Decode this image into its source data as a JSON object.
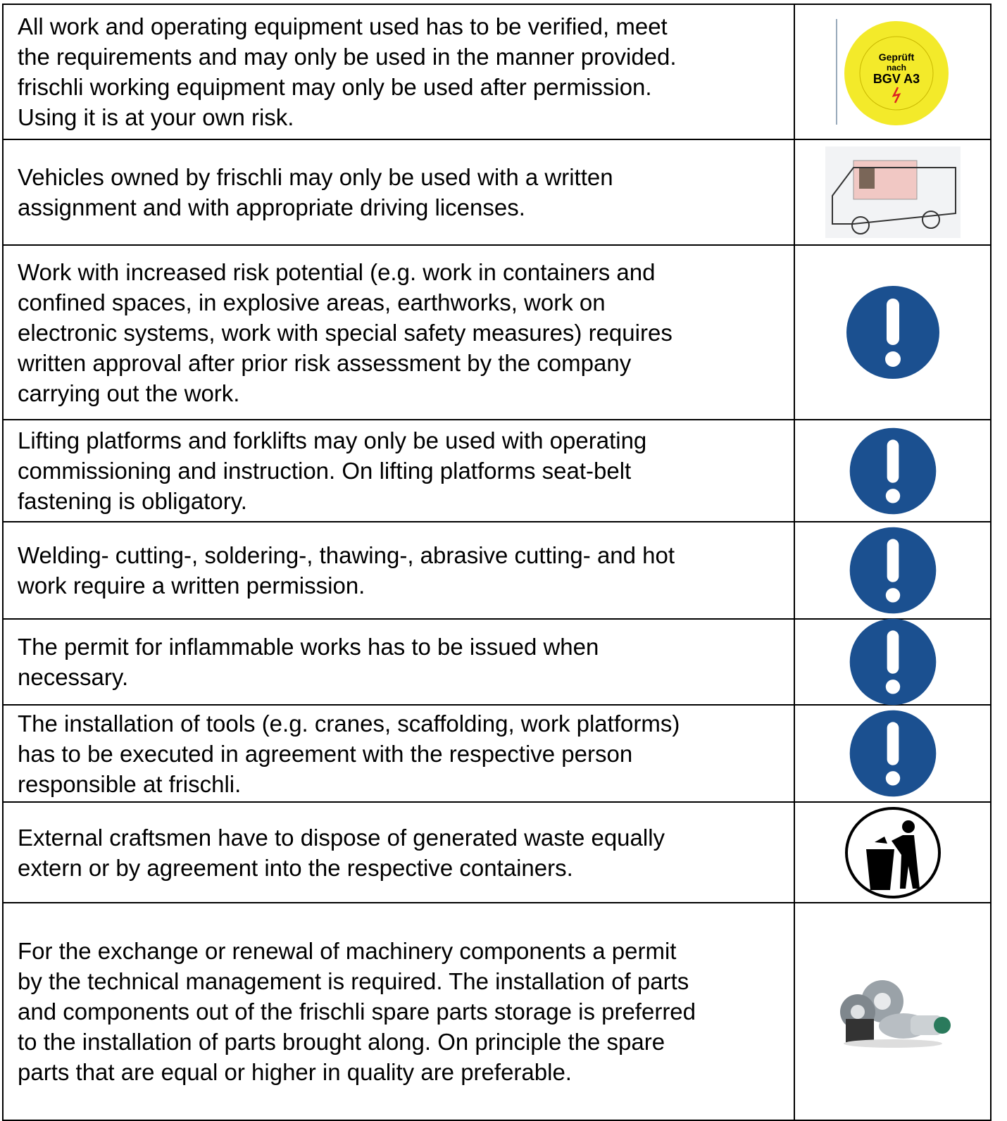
{
  "rows": [
    {
      "lines": [
        "All work and operating equipment used has to be verified, meet",
        "the requirements and may only be used in the manner provided.",
        "frischli working equipment may only be used after permission.",
        "Using it is at your own risk."
      ]
    },
    {
      "lines": [
        "Vehicles owned by frischli may only be used with a written",
        "assignment and with appropriate driving licenses."
      ]
    },
    {
      "lines": [
        "Work with increased risk potential (e.g. work in containers and",
        "confined spaces, in explosive areas, earthworks, work on",
        "electronic systems, work with special safety measures) requires",
        "written approval after prior risk assessment by the company",
        "carrying out the work."
      ]
    },
    {
      "lines": [
        "Lifting platforms and forklifts may only be used with operating",
        "commissioning and instruction. On lifting platforms seat-belt",
        "fastening is obligatory."
      ]
    },
    {
      "lines": [
        "Welding- cutting-, soldering-, thawing-, abrasive cutting- and hot",
        "work require a written permission."
      ]
    },
    {
      "lines": [
        "The permit for inflammable works has to be issued when",
        "necessary."
      ]
    },
    {
      "lines": [
        "The installation of tools (e.g. cranes, scaffolding, work platforms)",
        "has to be executed in agreement with the respective person",
        "responsible at frischli."
      ]
    },
    {
      "lines": [
        "External craftsmen have to dispose of generated waste equally",
        "extern or by agreement into the respective containers."
      ]
    },
    {
      "lines": [
        "For the exchange or renewal of machinery components a permit",
        "by the technical management is required. The installation of parts",
        "and components out of the frischli spare parts storage is preferred",
        "to the installation of parts brought along. On principle the spare",
        "parts that are equal or higher in quality are preferable."
      ]
    }
  ],
  "sticker": {
    "line1": "Geprüft",
    "line2": "nach",
    "line3": "BGV A3"
  }
}
